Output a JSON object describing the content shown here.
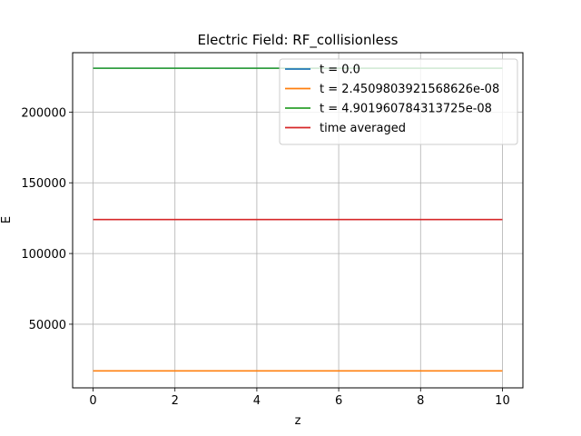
{
  "chart_data": {
    "type": "line",
    "title": "Electric Field: RF_collisionless",
    "xlabel": "z",
    "ylabel": "E",
    "xlim": [
      -0.5,
      10.5
    ],
    "ylim": [
      5000,
      242000
    ],
    "xticks": [
      0,
      2,
      4,
      6,
      8,
      10
    ],
    "yticks": [
      50000,
      100000,
      150000,
      200000
    ],
    "xtick_labels": [
      "0",
      "2",
      "4",
      "6",
      "8",
      "10"
    ],
    "ytick_labels": [
      "50000",
      "100000",
      "150000",
      "200000"
    ],
    "grid": true,
    "legend_position": "top-right",
    "series": [
      {
        "name": "t = 0.0",
        "color": "#1f77b4",
        "x": [
          0,
          10
        ],
        "y": [
          231000,
          231000
        ]
      },
      {
        "name": "t = 2.4509803921568626e-08",
        "color": "#ff7f0e",
        "x": [
          0,
          10
        ],
        "y": [
          17000,
          17000
        ]
      },
      {
        "name": "t = 4.901960784313725e-08",
        "color": "#2ca02c",
        "x": [
          0,
          10
        ],
        "y": [
          231000,
          231000
        ]
      },
      {
        "name": "time averaged",
        "color": "#d62728",
        "x": [
          0,
          10
        ],
        "y": [
          124000,
          124000
        ]
      }
    ]
  }
}
